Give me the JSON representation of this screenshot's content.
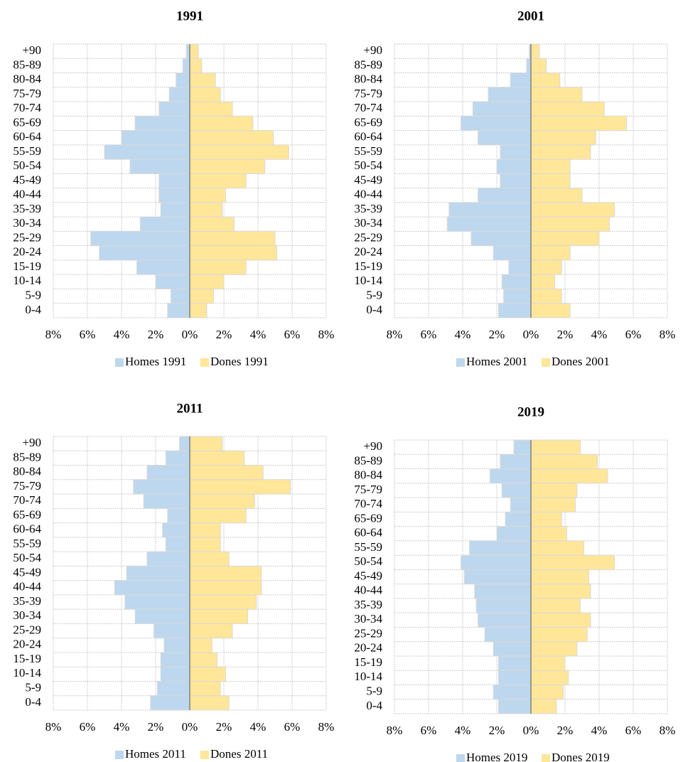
{
  "chart_data": [
    {
      "type": "pyramid",
      "title": "1991",
      "categories": [
        "0-4",
        "5-9",
        "10-14",
        "15-19",
        "20-24",
        "25-29",
        "30-34",
        "35-39",
        "40-44",
        "45-49",
        "50-54",
        "55-59",
        "60-64",
        "65-69",
        "70-74",
        "75-79",
        "80-84",
        "85-89",
        "+90"
      ],
      "series": [
        {
          "name": "Homes 1991",
          "color": "#bdd7ee",
          "values": [
            -1.3,
            -1.1,
            -2.0,
            -3.1,
            -5.3,
            -5.8,
            -2.9,
            -1.7,
            -1.8,
            -1.8,
            -3.5,
            -5.0,
            -4.0,
            -3.2,
            -1.8,
            -1.2,
            -0.8,
            -0.4,
            -0.2
          ]
        },
        {
          "name": "Dones 1991",
          "color": "#ffe699",
          "values": [
            1.0,
            1.4,
            2.0,
            3.3,
            5.1,
            5.0,
            2.6,
            1.9,
            2.1,
            3.3,
            4.4,
            5.8,
            4.9,
            3.7,
            2.5,
            1.8,
            1.5,
            0.7,
            0.5
          ]
        }
      ],
      "xlim": [
        -8,
        8
      ],
      "xticks": [
        {
          "value": -8,
          "label": "8%"
        },
        {
          "value": -6,
          "label": "6%"
        },
        {
          "value": -4,
          "label": "4%"
        },
        {
          "value": -2,
          "label": "2%"
        },
        {
          "value": 0,
          "label": "0%"
        },
        {
          "value": 2,
          "label": "2%"
        },
        {
          "value": 4,
          "label": "4%"
        },
        {
          "value": 6,
          "label": "6%"
        },
        {
          "value": 8,
          "label": "8%"
        }
      ],
      "grid": true,
      "legend": "bottom"
    },
    {
      "type": "pyramid",
      "title": "2001",
      "categories": [
        "0-4",
        "5-9",
        "10-14",
        "15-19",
        "20-24",
        "25-29",
        "30-34",
        "35-39",
        "40-44",
        "45-49",
        "50-54",
        "55-59",
        "60-64",
        "65-69",
        "70-74",
        "75-79",
        "80-84",
        "85-89",
        "+90"
      ],
      "series": [
        {
          "name": "Homes 2001",
          "color": "#bdd7ee",
          "values": [
            -1.9,
            -1.6,
            -1.7,
            -1.3,
            -2.2,
            -3.5,
            -4.9,
            -4.8,
            -3.1,
            -1.8,
            -2.0,
            -1.8,
            -3.1,
            -4.1,
            -3.4,
            -2.5,
            -1.2,
            -0.25,
            -0.1
          ]
        },
        {
          "name": "Dones 2001",
          "color": "#ffe699",
          "values": [
            2.3,
            1.8,
            1.4,
            1.8,
            2.3,
            4.0,
            4.6,
            4.9,
            3.0,
            2.3,
            2.3,
            3.5,
            3.8,
            5.6,
            4.3,
            3.0,
            1.7,
            0.9,
            0.5
          ]
        }
      ],
      "xlim": [
        -8,
        8
      ],
      "xticks": [
        {
          "value": -8,
          "label": "8%"
        },
        {
          "value": -6,
          "label": "6%"
        },
        {
          "value": -4,
          "label": "4%"
        },
        {
          "value": -2,
          "label": "2%"
        },
        {
          "value": 0,
          "label": "0%"
        },
        {
          "value": 2,
          "label": "2%"
        },
        {
          "value": 4,
          "label": "4%"
        },
        {
          "value": 6,
          "label": "6%"
        },
        {
          "value": 8,
          "label": "8%"
        }
      ],
      "grid": true,
      "legend": "bottom"
    },
    {
      "type": "pyramid",
      "title": "2011",
      "categories": [
        "0-4",
        "5-9",
        "10-14",
        "15-19",
        "20-24",
        "25-29",
        "30-34",
        "35-39",
        "40-44",
        "45-49",
        "50-54",
        "55-59",
        "60-64",
        "65-69",
        "70-74",
        "75-79",
        "80-84",
        "85-89",
        "+90"
      ],
      "series": [
        {
          "name": "Homes 2011",
          "color": "#bdd7ee",
          "values": [
            -2.3,
            -1.9,
            -1.7,
            -1.7,
            -1.5,
            -2.1,
            -3.2,
            -3.8,
            -4.4,
            -3.7,
            -2.5,
            -1.4,
            -1.6,
            -1.3,
            -2.7,
            -3.3,
            -2.5,
            -1.4,
            -0.6
          ]
        },
        {
          "name": "Dones 2011",
          "color": "#ffe699",
          "values": [
            2.3,
            1.8,
            2.1,
            1.6,
            1.3,
            2.5,
            3.4,
            3.9,
            4.2,
            4.2,
            2.3,
            1.8,
            1.8,
            3.3,
            3.8,
            5.9,
            4.3,
            3.2,
            1.9
          ]
        }
      ],
      "xlim": [
        -8,
        8
      ],
      "xticks": [
        {
          "value": -8,
          "label": "8%"
        },
        {
          "value": -6,
          "label": "6%"
        },
        {
          "value": -4,
          "label": "4%"
        },
        {
          "value": -2,
          "label": "2%"
        },
        {
          "value": 0,
          "label": "0%"
        },
        {
          "value": 2,
          "label": "2%"
        },
        {
          "value": 4,
          "label": "4%"
        },
        {
          "value": 6,
          "label": "6%"
        },
        {
          "value": 8,
          "label": "8%"
        }
      ],
      "grid": true,
      "legend": "bottom"
    },
    {
      "type": "pyramid",
      "title": "2019",
      "categories": [
        "0-4",
        "5-9",
        "10-14",
        "15-19",
        "20-24",
        "25-29",
        "30-34",
        "35-39",
        "40-44",
        "45-49",
        "50-54",
        "55-59",
        "60-64",
        "65-69",
        "70-74",
        "75-79",
        "80-84",
        "85-89",
        "+90"
      ],
      "series": [
        {
          "name": "Homes 2019",
          "color": "#bdd7ee",
          "values": [
            -1.9,
            -2.2,
            -1.9,
            -1.9,
            -2.2,
            -2.7,
            -3.1,
            -3.2,
            -3.3,
            -3.9,
            -4.1,
            -3.6,
            -2.0,
            -1.5,
            -1.2,
            -1.7,
            -2.4,
            -1.8,
            -1.0
          ]
        },
        {
          "name": "Dones 2019",
          "color": "#ffe699",
          "values": [
            1.5,
            1.9,
            2.2,
            2.0,
            2.7,
            3.3,
            3.5,
            2.9,
            3.5,
            3.4,
            4.9,
            3.1,
            2.1,
            1.8,
            2.6,
            2.7,
            4.5,
            3.9,
            2.9
          ]
        }
      ],
      "xlim": [
        -8,
        8
      ],
      "xticks": [
        {
          "value": -8,
          "label": "8%"
        },
        {
          "value": -6,
          "label": "6%"
        },
        {
          "value": -4,
          "label": "4%"
        },
        {
          "value": -2,
          "label": "2%"
        },
        {
          "value": 0,
          "label": "0%"
        },
        {
          "value": 2,
          "label": "2%"
        },
        {
          "value": 4,
          "label": "4%"
        },
        {
          "value": 6,
          "label": "6%"
        },
        {
          "value": 8,
          "label": "8%"
        }
      ],
      "grid": true,
      "legend": "bottom"
    }
  ]
}
